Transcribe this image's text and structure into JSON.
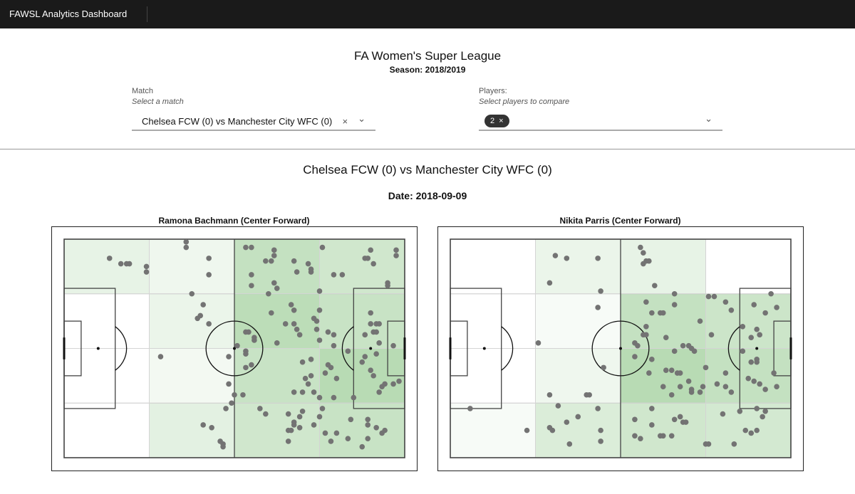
{
  "app": {
    "title_a": "FAWSL",
    "title_b": " Analytics Dashboard"
  },
  "header": {
    "title": "FA Women's Super League",
    "season": "Season: 2018/2019"
  },
  "filters": {
    "match": {
      "label": "Match",
      "hint": "Select a match",
      "value": "Chelsea FCW (0) vs Manchester City WFC (0)",
      "clear_icon": "×",
      "chevron": "⌄"
    },
    "players": {
      "label": "Players:",
      "hint": "Select players to compare",
      "chip": "2",
      "chip_clear": "×",
      "chevron": "⌄"
    }
  },
  "match": {
    "title": "Chelsea FCW (0) vs Manchester City WFC (0)",
    "date": "Date: 2018-09-09"
  },
  "colors": {
    "zone": "#56aa4c",
    "point": "#737373",
    "line": "#444444",
    "grid": "#d4d4d4"
  },
  "chart_data": [
    {
      "type": "scatter",
      "title": "Ramona Bachmann (Center Forward)",
      "xlim": [
        0,
        120
      ],
      "ylim": [
        0,
        80
      ],
      "zones": {
        "cols": 4,
        "rows": 4
      },
      "points": [
        [
          16,
          7
        ],
        [
          20,
          9
        ],
        [
          22,
          9
        ],
        [
          23,
          9
        ],
        [
          29,
          10
        ],
        [
          29,
          12
        ],
        [
          43,
          1
        ],
        [
          43,
          3
        ],
        [
          51,
          7
        ],
        [
          51,
          13
        ],
        [
          45,
          20
        ],
        [
          49,
          24
        ],
        [
          48,
          28
        ],
        [
          47,
          29
        ],
        [
          51,
          31
        ],
        [
          34,
          43
        ],
        [
          58,
          43
        ],
        [
          58,
          53
        ],
        [
          60,
          57
        ],
        [
          59,
          60
        ],
        [
          57,
          62
        ],
        [
          49,
          68
        ],
        [
          52,
          69
        ],
        [
          55,
          74
        ],
        [
          56,
          75
        ],
        [
          56,
          76
        ],
        [
          61,
          39
        ],
        [
          64,
          3
        ],
        [
          66,
          3
        ],
        [
          74,
          4
        ],
        [
          74,
          6
        ],
        [
          71,
          8
        ],
        [
          73,
          8
        ],
        [
          81,
          8
        ],
        [
          86,
          9
        ],
        [
          87,
          11
        ],
        [
          87,
          12
        ],
        [
          82,
          12
        ],
        [
          66,
          13
        ],
        [
          66,
          17
        ],
        [
          74,
          16
        ],
        [
          75,
          18
        ],
        [
          72,
          20
        ],
        [
          90,
          19
        ],
        [
          91,
          3
        ],
        [
          108,
          4
        ],
        [
          117,
          4
        ],
        [
          117,
          6
        ],
        [
          106,
          7
        ],
        [
          107,
          7
        ],
        [
          109,
          9
        ],
        [
          95,
          13
        ],
        [
          98,
          13
        ],
        [
          114,
          16
        ],
        [
          114,
          17
        ],
        [
          80,
          24
        ],
        [
          81,
          26
        ],
        [
          73,
          27
        ],
        [
          90,
          26
        ],
        [
          88,
          29
        ],
        [
          89,
          30
        ],
        [
          78,
          31
        ],
        [
          81,
          31
        ],
        [
          82,
          33
        ],
        [
          83,
          35
        ],
        [
          89,
          33
        ],
        [
          90,
          37
        ],
        [
          93,
          34
        ],
        [
          95,
          35
        ],
        [
          95,
          39
        ],
        [
          100,
          41
        ],
        [
          108,
          27
        ],
        [
          108,
          31
        ],
        [
          110,
          31
        ],
        [
          111,
          31
        ],
        [
          109,
          34
        ],
        [
          110,
          34
        ],
        [
          106,
          35
        ],
        [
          111,
          38
        ],
        [
          116,
          39
        ],
        [
          110,
          42
        ],
        [
          106,
          43
        ],
        [
          105,
          45
        ],
        [
          108,
          48
        ],
        [
          109,
          50
        ],
        [
          64,
          34
        ],
        [
          65,
          34
        ],
        [
          67,
          36
        ],
        [
          67,
          37
        ],
        [
          64,
          41
        ],
        [
          64,
          42
        ],
        [
          75,
          38
        ],
        [
          66,
          46
        ],
        [
          64,
          47
        ],
        [
          84,
          45
        ],
        [
          87,
          44
        ],
        [
          93,
          46
        ],
        [
          94,
          47
        ],
        [
          92,
          49
        ],
        [
          96,
          51
        ],
        [
          87,
          50
        ],
        [
          85,
          51
        ],
        [
          86,
          53
        ],
        [
          81,
          56
        ],
        [
          84,
          56
        ],
        [
          88,
          56
        ],
        [
          90,
          58
        ],
        [
          95,
          58
        ],
        [
          102,
          58
        ],
        [
          63,
          57
        ],
        [
          113,
          53
        ],
        [
          112,
          54
        ],
        [
          111,
          56
        ],
        [
          116,
          53
        ],
        [
          118,
          52
        ],
        [
          69,
          62
        ],
        [
          71,
          64
        ],
        [
          79,
          64
        ],
        [
          84,
          63
        ],
        [
          83,
          65
        ],
        [
          81,
          67
        ],
        [
          81,
          68
        ],
        [
          79,
          70
        ],
        [
          80,
          70
        ],
        [
          83,
          69
        ],
        [
          79,
          74
        ],
        [
          88,
          68
        ],
        [
          90,
          65
        ],
        [
          91,
          62
        ],
        [
          92,
          71
        ],
        [
          96,
          71
        ],
        [
          94,
          74
        ],
        [
          101,
          66
        ],
        [
          100,
          73
        ],
        [
          107,
          66
        ],
        [
          107,
          68
        ],
        [
          110,
          69
        ],
        [
          112,
          71
        ],
        [
          113,
          70
        ],
        [
          107,
          73
        ],
        [
          105,
          76
        ]
      ]
    },
    {
      "type": "scatter",
      "title": "Nikita Parris (Center Forward)",
      "xlim": [
        0,
        120
      ],
      "ylim": [
        0,
        80
      ],
      "zones": {
        "cols": 4,
        "rows": 4
      },
      "points": [
        [
          37,
          6
        ],
        [
          41,
          7
        ],
        [
          52,
          7
        ],
        [
          35,
          16
        ],
        [
          53,
          19
        ],
        [
          52,
          25
        ],
        [
          31,
          38
        ],
        [
          54,
          47
        ],
        [
          35,
          57
        ],
        [
          48,
          57
        ],
        [
          49,
          57
        ],
        [
          38,
          61
        ],
        [
          52,
          62
        ],
        [
          7,
          62
        ],
        [
          45,
          65
        ],
        [
          41,
          67
        ],
        [
          27,
          70
        ],
        [
          35,
          69
        ],
        [
          36,
          70
        ],
        [
          53,
          70
        ],
        [
          42,
          75
        ],
        [
          53,
          74
        ],
        [
          67,
          3
        ],
        [
          68,
          5
        ],
        [
          69,
          8
        ],
        [
          70,
          8
        ],
        [
          68,
          9
        ],
        [
          72,
          17
        ],
        [
          79,
          20
        ],
        [
          69,
          23
        ],
        [
          79,
          24
        ],
        [
          71,
          27
        ],
        [
          74,
          27
        ],
        [
          75,
          27
        ],
        [
          88,
          30
        ],
        [
          69,
          32
        ],
        [
          68,
          35
        ],
        [
          69,
          35
        ],
        [
          76,
          36
        ],
        [
          65,
          38
        ],
        [
          66,
          39
        ],
        [
          65,
          43
        ],
        [
          71,
          44
        ],
        [
          70,
          49
        ],
        [
          79,
          41
        ],
        [
          82,
          39
        ],
        [
          84,
          39
        ],
        [
          85,
          40
        ],
        [
          86,
          41
        ],
        [
          76,
          48
        ],
        [
          78,
          48
        ],
        [
          80,
          49
        ],
        [
          81,
          49
        ],
        [
          84,
          52
        ],
        [
          75,
          54
        ],
        [
          81,
          54
        ],
        [
          85,
          55
        ],
        [
          85,
          56
        ],
        [
          88,
          56
        ],
        [
          89,
          54
        ],
        [
          78,
          57
        ],
        [
          90,
          47
        ],
        [
          91,
          21
        ],
        [
          93,
          21
        ],
        [
          97,
          23
        ],
        [
          99,
          26
        ],
        [
          92,
          35
        ],
        [
          103,
          32
        ],
        [
          103,
          41
        ],
        [
          97,
          49
        ],
        [
          94,
          53
        ],
        [
          97,
          54
        ],
        [
          99,
          56
        ],
        [
          107,
          24
        ],
        [
          113,
          20
        ],
        [
          115,
          25
        ],
        [
          111,
          27
        ],
        [
          108,
          33
        ],
        [
          109,
          35
        ],
        [
          106,
          36
        ],
        [
          108,
          44
        ],
        [
          108,
          45
        ],
        [
          106,
          45
        ],
        [
          114,
          49
        ],
        [
          105,
          51
        ],
        [
          107,
          52
        ],
        [
          109,
          53
        ],
        [
          111,
          55
        ],
        [
          115,
          54
        ],
        [
          71,
          62
        ],
        [
          65,
          66
        ],
        [
          71,
          68
        ],
        [
          79,
          66
        ],
        [
          81,
          65
        ],
        [
          82,
          67
        ],
        [
          83,
          67
        ],
        [
          65,
          72
        ],
        [
          67,
          73
        ],
        [
          74,
          72
        ],
        [
          75,
          72
        ],
        [
          78,
          72
        ],
        [
          90,
          75
        ],
        [
          91,
          75
        ],
        [
          100,
          75
        ],
        [
          96,
          64
        ],
        [
          102,
          63
        ],
        [
          108,
          62
        ],
        [
          111,
          63
        ],
        [
          110,
          65
        ],
        [
          104,
          70
        ],
        [
          106,
          71
        ],
        [
          108,
          70
        ]
      ]
    }
  ]
}
